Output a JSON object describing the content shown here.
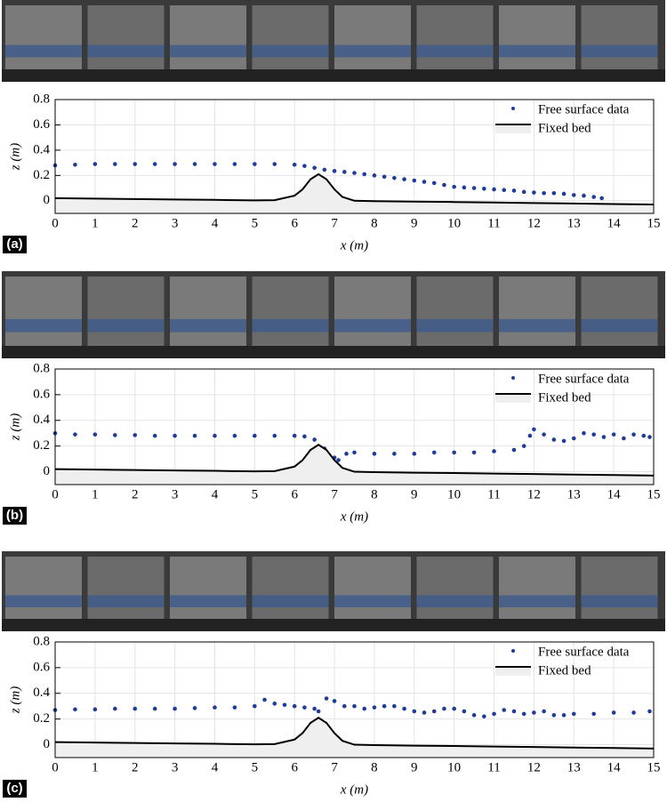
{
  "chart_data": [
    {
      "type": "scatter",
      "panel_label": "(a)",
      "xlabel": "x (m)",
      "ylabel": "z (m)",
      "xlim": [
        0,
        15
      ],
      "ylim": [
        -0.1,
        0.8
      ],
      "xticks": [
        0,
        1,
        2,
        3,
        4,
        5,
        6,
        7,
        8,
        9,
        10,
        11,
        12,
        13,
        14,
        15
      ],
      "yticks": [
        0,
        0.2,
        0.4,
        0.6,
        0.8
      ],
      "grid": true,
      "legend": "upper right",
      "series": [
        {
          "name": "Free surface data",
          "color": "#1f3c98",
          "mark": "dot",
          "x": [
            0,
            0.5,
            1,
            1.5,
            2,
            2.5,
            3,
            3.5,
            4,
            4.5,
            5,
            5.5,
            6,
            6.25,
            6.5,
            6.75,
            7,
            7.25,
            7.5,
            7.75,
            8,
            8.25,
            8.5,
            8.75,
            9,
            9.25,
            9.5,
            9.75,
            10,
            10.25,
            10.5,
            10.75,
            11,
            11.25,
            11.5,
            11.75,
            12,
            12.25,
            12.5,
            12.75,
            13,
            13.25,
            13.5,
            13.7
          ],
          "values": [
            0.28,
            0.285,
            0.29,
            0.29,
            0.29,
            0.29,
            0.29,
            0.29,
            0.29,
            0.29,
            0.29,
            0.29,
            0.285,
            0.275,
            0.26,
            0.245,
            0.235,
            0.228,
            0.22,
            0.21,
            0.2,
            0.19,
            0.18,
            0.17,
            0.16,
            0.15,
            0.14,
            0.125,
            0.11,
            0.105,
            0.1,
            0.095,
            0.09,
            0.085,
            0.08,
            0.07,
            0.065,
            0.06,
            0.06,
            0.055,
            0.045,
            0.04,
            0.03,
            0.02
          ]
        },
        {
          "name": "Fixed bed",
          "color": "#000000",
          "fill": "#efefef",
          "mark": "area",
          "x": [
            0,
            1,
            2,
            3,
            4,
            5,
            5.5,
            6,
            6.2,
            6.4,
            6.6,
            6.8,
            7,
            7.2,
            7.5,
            8,
            9,
            10,
            11,
            12,
            13,
            14,
            15
          ],
          "values": [
            0.02,
            0.017,
            0.013,
            0.01,
            0.007,
            0.003,
            0.005,
            0.04,
            0.09,
            0.17,
            0.21,
            0.17,
            0.09,
            0.03,
            0,
            -0.003,
            -0.007,
            -0.01,
            -0.014,
            -0.018,
            -0.022,
            -0.026,
            -0.03
          ]
        }
      ]
    },
    {
      "type": "scatter",
      "panel_label": "(b)",
      "xlabel": "x (m)",
      "ylabel": "z (m)",
      "xlim": [
        0,
        15
      ],
      "ylim": [
        -0.1,
        0.8
      ],
      "xticks": [
        0,
        1,
        2,
        3,
        4,
        5,
        6,
        7,
        8,
        9,
        10,
        11,
        12,
        13,
        14,
        15
      ],
      "yticks": [
        0,
        0.2,
        0.4,
        0.6,
        0.8
      ],
      "grid": true,
      "legend": "upper right",
      "series": [
        {
          "name": "Free surface data",
          "color": "#1f3c98",
          "mark": "dot",
          "x": [
            0,
            0.5,
            1,
            1.5,
            2,
            2.5,
            3,
            3.5,
            4,
            4.5,
            5,
            5.5,
            6,
            6.25,
            6.5,
            6.75,
            7,
            7.1,
            7.3,
            7.5,
            8,
            8.5,
            9,
            9.5,
            10,
            10.5,
            11,
            11.5,
            11.75,
            11.9,
            12,
            12.25,
            12.5,
            12.75,
            13,
            13.25,
            13.5,
            13.75,
            14,
            14.25,
            14.5,
            14.75,
            14.9
          ],
          "values": [
            0.3,
            0.29,
            0.29,
            0.285,
            0.285,
            0.28,
            0.28,
            0.28,
            0.28,
            0.28,
            0.28,
            0.28,
            0.28,
            0.275,
            0.25,
            0.18,
            0.11,
            0.09,
            0.14,
            0.15,
            0.14,
            0.14,
            0.14,
            0.15,
            0.15,
            0.15,
            0.16,
            0.17,
            0.2,
            0.28,
            0.33,
            0.29,
            0.25,
            0.24,
            0.26,
            0.3,
            0.29,
            0.27,
            0.29,
            0.26,
            0.29,
            0.28,
            0.27
          ]
        },
        {
          "name": "Fixed bed",
          "color": "#000000",
          "fill": "#efefef",
          "mark": "area",
          "x": [
            0,
            1,
            2,
            3,
            4,
            5,
            5.5,
            6,
            6.2,
            6.4,
            6.6,
            6.8,
            7,
            7.2,
            7.5,
            8,
            9,
            10,
            11,
            12,
            13,
            14,
            15
          ],
          "values": [
            0.02,
            0.017,
            0.013,
            0.01,
            0.007,
            0.003,
            0.005,
            0.04,
            0.09,
            0.17,
            0.21,
            0.17,
            0.09,
            0.03,
            0,
            -0.003,
            -0.007,
            -0.01,
            -0.014,
            -0.018,
            -0.022,
            -0.026,
            -0.03
          ]
        }
      ]
    },
    {
      "type": "scatter",
      "panel_label": "(c)",
      "xlabel": "x (m)",
      "ylabel": "z (m)",
      "xlim": [
        0,
        15
      ],
      "ylim": [
        -0.1,
        0.8
      ],
      "xticks": [
        0,
        1,
        2,
        3,
        4,
        5,
        6,
        7,
        8,
        9,
        10,
        11,
        12,
        13,
        14,
        15
      ],
      "yticks": [
        0,
        0.2,
        0.4,
        0.6,
        0.8
      ],
      "grid": true,
      "legend": "upper right",
      "series": [
        {
          "name": "Free surface data",
          "color": "#1f3c98",
          "mark": "dot",
          "x": [
            0,
            0.5,
            1,
            1.5,
            2,
            2.5,
            3,
            3.5,
            4,
            4.5,
            5,
            5.25,
            5.5,
            5.75,
            6,
            6.25,
            6.5,
            6.6,
            6.8,
            7,
            7.25,
            7.5,
            7.75,
            8,
            8.25,
            8.5,
            8.75,
            9,
            9.25,
            9.5,
            9.75,
            10,
            10.25,
            10.5,
            10.75,
            11,
            11.25,
            11.5,
            11.75,
            12,
            12.25,
            12.5,
            12.75,
            13,
            13.5,
            14,
            14.5,
            14.9
          ],
          "values": [
            0.27,
            0.275,
            0.275,
            0.28,
            0.28,
            0.28,
            0.28,
            0.285,
            0.29,
            0.29,
            0.3,
            0.35,
            0.32,
            0.31,
            0.3,
            0.29,
            0.28,
            0.26,
            0.36,
            0.34,
            0.3,
            0.3,
            0.28,
            0.29,
            0.3,
            0.3,
            0.28,
            0.26,
            0.25,
            0.26,
            0.28,
            0.28,
            0.26,
            0.23,
            0.22,
            0.24,
            0.27,
            0.26,
            0.24,
            0.25,
            0.26,
            0.23,
            0.23,
            0.24,
            0.24,
            0.25,
            0.25,
            0.26
          ]
        },
        {
          "name": "Fixed bed",
          "color": "#000000",
          "fill": "#efefef",
          "mark": "area",
          "x": [
            0,
            1,
            2,
            3,
            4,
            5,
            5.5,
            6,
            6.2,
            6.4,
            6.6,
            6.8,
            7,
            7.2,
            7.5,
            8,
            9,
            10,
            11,
            12,
            13,
            14,
            15
          ],
          "values": [
            0.02,
            0.017,
            0.013,
            0.01,
            0.007,
            0.003,
            0.005,
            0.04,
            0.09,
            0.17,
            0.21,
            0.17,
            0.09,
            0.03,
            0,
            -0.003,
            -0.007,
            -0.01,
            -0.014,
            -0.018,
            -0.022,
            -0.026,
            -0.03
          ]
        }
      ]
    }
  ]
}
